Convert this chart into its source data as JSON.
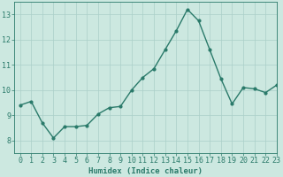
{
  "x": [
    0,
    1,
    2,
    3,
    4,
    5,
    6,
    7,
    8,
    9,
    10,
    11,
    12,
    13,
    14,
    15,
    16,
    17,
    18,
    19,
    20,
    21,
    22,
    23
  ],
  "y": [
    9.4,
    9.55,
    8.7,
    8.1,
    8.55,
    8.55,
    8.6,
    9.05,
    9.3,
    9.35,
    10.0,
    10.5,
    10.85,
    11.6,
    12.35,
    13.2,
    12.75,
    11.6,
    10.45,
    9.45,
    10.1,
    10.05,
    9.9,
    10.2
  ],
  "line_color": "#2a7a6a",
  "marker": "o",
  "marker_size": 2.0,
  "background_color": "#cce8e0",
  "grid_color": "#aacfc8",
  "xlabel": "Humidex (Indice chaleur)",
  "xlim": [
    -0.5,
    23
  ],
  "ylim": [
    7.5,
    13.5
  ],
  "yticks": [
    8,
    9,
    10,
    11,
    12,
    13
  ],
  "xticks": [
    0,
    1,
    2,
    3,
    4,
    5,
    6,
    7,
    8,
    9,
    10,
    11,
    12,
    13,
    14,
    15,
    16,
    17,
    18,
    19,
    20,
    21,
    22,
    23
  ],
  "xlabel_fontsize": 6.5,
  "tick_fontsize": 6.0,
  "line_width": 1.0
}
